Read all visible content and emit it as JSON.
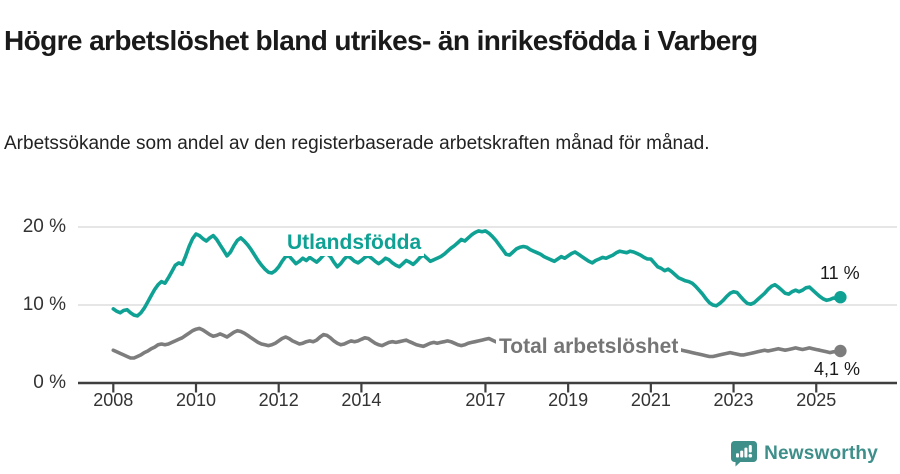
{
  "header": {
    "title": "Högre arbetslöshet bland utrikes- än inrikesfödda i Varberg",
    "subtitle": "Arbetssökande som andel av den registerbaserade arbetskraften månad för månad."
  },
  "chart_data": {
    "type": "line",
    "title": "Högre arbetslöshet bland utrikes- än inrikesfödda i Varberg",
    "subtitle": "Arbetssökande som andel av den registerbaserade arbetskraften månad för månad.",
    "unit": "%",
    "x_start_year": 2008,
    "points_per_year": 12,
    "x_range": [
      2008.0,
      2025.6
    ],
    "ylim": [
      0,
      21.5
    ],
    "grid": "horizontal",
    "yticks": [
      {
        "value": 0,
        "label": "0 %"
      },
      {
        "value": 10,
        "label": "10 %"
      },
      {
        "value": 20,
        "label": "20 %"
      }
    ],
    "xticks": [
      {
        "value": 2008,
        "label": "2008"
      },
      {
        "value": 2010,
        "label": "2010"
      },
      {
        "value": 2012,
        "label": "2012"
      },
      {
        "value": 2014,
        "label": "2014"
      },
      {
        "value": 2017,
        "label": "2017"
      },
      {
        "value": 2019,
        "label": "2019"
      },
      {
        "value": 2021,
        "label": "2021"
      },
      {
        "value": 2023,
        "label": "2023"
      },
      {
        "value": 2025,
        "label": "2025"
      }
    ],
    "colors": {
      "utlandsfodda": "#0FA194",
      "total": "#7D7D7D",
      "grid": "#DEDEDE",
      "axis": "#3F3F3F",
      "text": "#333333",
      "brand": "#3E8F8A"
    },
    "series": [
      {
        "name": "Utlandsfödda",
        "color": "#0FA194",
        "end_label": "11 %",
        "end_value": 11.0,
        "values": [
          9.5,
          9.2,
          9.0,
          9.3,
          9.4,
          9.0,
          8.7,
          8.6,
          9.0,
          9.6,
          10.4,
          11.2,
          12.0,
          12.6,
          13.0,
          12.8,
          13.5,
          14.3,
          15.1,
          15.4,
          15.2,
          16.3,
          17.5,
          18.5,
          19.1,
          18.9,
          18.5,
          18.2,
          18.6,
          18.9,
          18.4,
          17.7,
          17.0,
          16.3,
          16.8,
          17.6,
          18.3,
          18.6,
          18.2,
          17.7,
          17.1,
          16.4,
          15.7,
          15.1,
          14.6,
          14.2,
          14.1,
          14.4,
          14.9,
          15.6,
          16.2,
          16.3,
          15.8,
          15.3,
          15.6,
          16.0,
          15.7,
          16.1,
          15.8,
          15.5,
          15.9,
          16.4,
          16.6,
          16.2,
          15.5,
          14.9,
          15.3,
          15.9,
          16.3,
          16.0,
          15.6,
          15.4,
          15.7,
          16.1,
          16.3,
          16.0,
          15.6,
          15.3,
          15.6,
          16.0,
          15.8,
          15.4,
          15.1,
          14.9,
          15.3,
          15.7,
          15.5,
          15.2,
          15.6,
          16.1,
          16.4,
          16.0,
          15.6,
          15.8,
          16.0,
          16.2,
          16.5,
          16.9,
          17.3,
          17.6,
          18.0,
          18.4,
          18.2,
          18.6,
          19.0,
          19.3,
          19.5,
          19.4,
          19.5,
          19.2,
          18.8,
          18.3,
          17.7,
          17.1,
          16.5,
          16.4,
          16.8,
          17.2,
          17.4,
          17.5,
          17.4,
          17.1,
          16.9,
          16.7,
          16.5,
          16.2,
          16.0,
          15.8,
          15.6,
          15.9,
          16.2,
          16.0,
          16.3,
          16.6,
          16.8,
          16.5,
          16.2,
          15.9,
          15.6,
          15.4,
          15.7,
          15.9,
          16.1,
          16.0,
          16.2,
          16.4,
          16.7,
          16.9,
          16.8,
          16.7,
          16.9,
          16.8,
          16.6,
          16.4,
          16.1,
          15.9,
          15.9,
          15.4,
          14.9,
          14.7,
          14.4,
          14.6,
          14.3,
          13.9,
          13.5,
          13.3,
          13.1,
          13.0,
          12.8,
          12.4,
          11.9,
          11.4,
          10.8,
          10.3,
          10.0,
          9.9,
          10.2,
          10.6,
          11.1,
          11.5,
          11.7,
          11.6,
          11.1,
          10.6,
          10.2,
          10.1,
          10.3,
          10.7,
          11.1,
          11.5,
          12.0,
          12.4,
          12.6,
          12.3,
          11.9,
          11.5,
          11.4,
          11.7,
          11.9,
          11.7,
          11.9,
          12.2,
          12.3,
          11.9,
          11.5,
          11.1,
          10.8,
          10.6,
          10.7,
          10.9,
          10.8,
          11.0
        ]
      },
      {
        "name": "Total arbetslöshet",
        "color": "#7D7D7D",
        "end_label": "4,1 %",
        "end_value": 4.1,
        "values": [
          4.2,
          4.0,
          3.8,
          3.6,
          3.4,
          3.2,
          3.2,
          3.4,
          3.6,
          3.9,
          4.1,
          4.4,
          4.6,
          4.9,
          5.0,
          4.9,
          5.0,
          5.2,
          5.4,
          5.6,
          5.8,
          6.1,
          6.4,
          6.7,
          6.9,
          7.0,
          6.8,
          6.5,
          6.2,
          6.0,
          6.1,
          6.3,
          6.1,
          5.9,
          6.2,
          6.5,
          6.7,
          6.6,
          6.4,
          6.1,
          5.8,
          5.5,
          5.2,
          5.0,
          4.9,
          4.8,
          4.9,
          5.1,
          5.4,
          5.7,
          5.9,
          5.7,
          5.4,
          5.2,
          5.0,
          5.1,
          5.3,
          5.4,
          5.3,
          5.5,
          5.9,
          6.2,
          6.1,
          5.8,
          5.4,
          5.1,
          4.9,
          5.0,
          5.2,
          5.4,
          5.3,
          5.4,
          5.6,
          5.8,
          5.7,
          5.4,
          5.1,
          4.9,
          4.8,
          5.0,
          5.2,
          5.3,
          5.2,
          5.3,
          5.4,
          5.5,
          5.3,
          5.1,
          4.9,
          4.8,
          4.7,
          4.9,
          5.1,
          5.2,
          5.1,
          5.2,
          5.3,
          5.4,
          5.3,
          5.1,
          4.9,
          4.8,
          4.9,
          5.1,
          5.2,
          5.3,
          5.4,
          5.5,
          5.6,
          5.7,
          5.5,
          5.3,
          5.1,
          4.9,
          4.8,
          5.0,
          5.1,
          5.2,
          5.3,
          5.2,
          5.3,
          5.4,
          5.2,
          5.0,
          4.9,
          4.8,
          4.7,
          4.8,
          4.9,
          5.0,
          5.1,
          5.0,
          5.1,
          5.2,
          5.1,
          5.0,
          4.9,
          4.8,
          4.9,
          5.0,
          5.1,
          5.2,
          5.3,
          5.3,
          5.4,
          5.5,
          5.6,
          5.8,
          5.9,
          5.8,
          5.7,
          5.6,
          5.5,
          5.4,
          5.3,
          5.2,
          5.1,
          5.0,
          4.9,
          4.8,
          4.7,
          4.6,
          4.5,
          4.4,
          4.3,
          4.2,
          4.1,
          4.0,
          3.9,
          3.8,
          3.7,
          3.6,
          3.5,
          3.4,
          3.4,
          3.5,
          3.6,
          3.7,
          3.8,
          3.9,
          3.8,
          3.7,
          3.6,
          3.6,
          3.7,
          3.8,
          3.9,
          4.0,
          4.1,
          4.2,
          4.1,
          4.2,
          4.3,
          4.4,
          4.3,
          4.2,
          4.3,
          4.4,
          4.5,
          4.4,
          4.3,
          4.4,
          4.5,
          4.4,
          4.3,
          4.2,
          4.1,
          4.0,
          3.9,
          4.0,
          4.0,
          4.1
        ]
      }
    ]
  },
  "footer": {
    "brand": "Newsworthy"
  }
}
